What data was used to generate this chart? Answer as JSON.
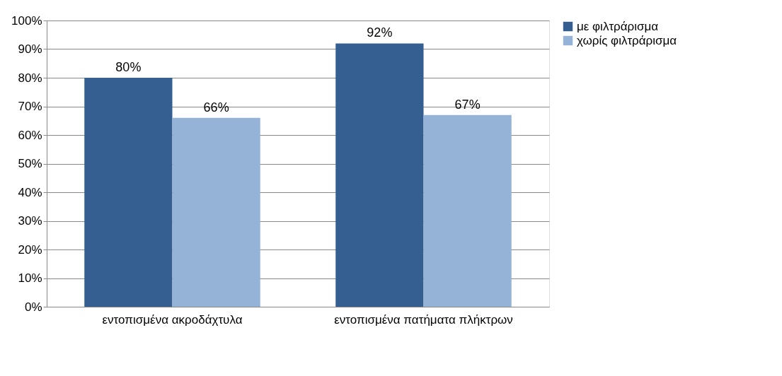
{
  "chart_data": {
    "type": "bar",
    "categories": [
      "εντοπισμένα ακροδάχτυλα",
      "εντοπισμένα πατήματα πλήκτρων"
    ],
    "series": [
      {
        "name": "με φιλτράρισμα",
        "color": "#355f91",
        "values": [
          80,
          92
        ],
        "value_labels": [
          "80%",
          "92%"
        ]
      },
      {
        "name": "χωρίς φιλτράρισμα",
        "color": "#95b3d7",
        "values": [
          66,
          67
        ],
        "value_labels": [
          "66%",
          "67%"
        ]
      }
    ],
    "ylim": [
      0,
      100
    ],
    "yticks": [
      {
        "value": 0,
        "label": "0%"
      },
      {
        "value": 10,
        "label": "10%"
      },
      {
        "value": 20,
        "label": "20%"
      },
      {
        "value": 30,
        "label": "30%"
      },
      {
        "value": 40,
        "label": "40%"
      },
      {
        "value": 50,
        "label": "50%"
      },
      {
        "value": 60,
        "label": "60%"
      },
      {
        "value": 70,
        "label": "70%"
      },
      {
        "value": 80,
        "label": "80%"
      },
      {
        "value": 90,
        "label": "90%"
      },
      {
        "value": 100,
        "label": "100%"
      }
    ],
    "grid": "y",
    "legend": "right"
  }
}
